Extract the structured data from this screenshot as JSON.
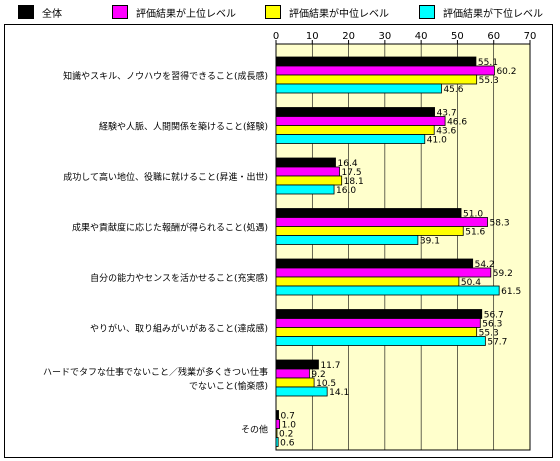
{
  "legend": [
    {
      "label": "全体",
      "color": "#000000"
    },
    {
      "label": "評価結果が上位レベル",
      "color": "#ff00ff"
    },
    {
      "label": "評価結果が中位レベル",
      "color": "#ffff00"
    },
    {
      "label": "評価結果が下位レベル",
      "color": "#00ffff"
    }
  ],
  "chart_data": {
    "type": "bar",
    "orientation": "horizontal",
    "xlim": [
      0,
      70
    ],
    "xticks": [
      "0",
      "10",
      "20",
      "30",
      "40",
      "50",
      "60",
      "70"
    ],
    "x_axis_position": "top",
    "plot_background": "#ffffcc",
    "grid": true,
    "legend_position": "top",
    "categories": [
      [
        "知識やスキル、ノウハウを習得できること(成長感)"
      ],
      [
        "経験や人脈、人間関係を築けること(経験)"
      ],
      [
        "成功して高い地位、役職に就けること(昇進・出世)"
      ],
      [
        "成果や貢献度に応じた報酬が得られること(処遇)"
      ],
      [
        "自分の能力やセンスを活かせること(充実感)"
      ],
      [
        "やりがい、取り組みがいがあること(達成感)"
      ],
      [
        "ハードでタフな仕事でないこと／残業が多くきつい仕事",
        "でないこと(愉楽感)"
      ],
      [
        "その他"
      ]
    ],
    "series": [
      {
        "name": "全体",
        "color": "#000000",
        "values": [
          55.1,
          43.7,
          16.4,
          51.0,
          54.2,
          56.7,
          11.7,
          0.7
        ]
      },
      {
        "name": "評価結果が上位レベル",
        "color": "#ff00ff",
        "values": [
          60.2,
          46.6,
          17.5,
          58.3,
          59.2,
          56.3,
          9.2,
          1.0
        ]
      },
      {
        "name": "評価結果が中位レベル",
        "color": "#ffff00",
        "values": [
          55.3,
          43.6,
          18.1,
          51.6,
          50.4,
          55.3,
          10.5,
          0.2
        ]
      },
      {
        "name": "評価結果が下位レベル",
        "color": "#00ffff",
        "values": [
          45.6,
          41.0,
          16.0,
          39.1,
          61.5,
          57.7,
          14.1,
          0.6
        ]
      }
    ]
  }
}
